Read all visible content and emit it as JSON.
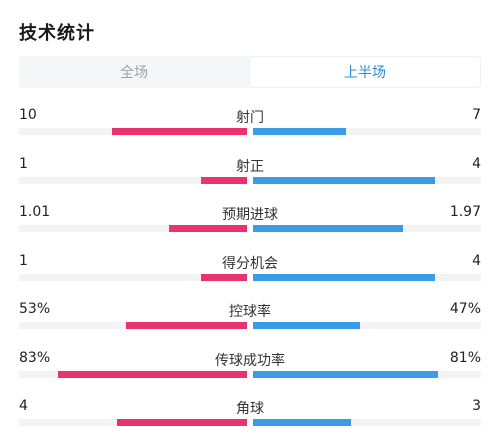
{
  "title": "技术统计",
  "tabs": [
    {
      "label": "全场",
      "active": false
    },
    {
      "label": "上半场",
      "active": true
    }
  ],
  "colors": {
    "home": "#e8336e",
    "away": "#3a9be6",
    "active_tab": "#2a8bd6"
  },
  "stats": [
    {
      "label": "射门",
      "left": "10",
      "right": "7",
      "left_share": 0.59,
      "right_share": 0.41
    },
    {
      "label": "射正",
      "left": "1",
      "right": "4",
      "left_share": 0.2,
      "right_share": 0.8
    },
    {
      "label": "预期进球",
      "left": "1.01",
      "right": "1.97",
      "left_share": 0.34,
      "right_share": 0.66
    },
    {
      "label": "得分机会",
      "left": "1",
      "right": "4",
      "left_share": 0.2,
      "right_share": 0.8
    },
    {
      "label": "控球率",
      "left": "53%",
      "right": "47%",
      "left_share": 0.53,
      "right_share": 0.47
    },
    {
      "label": "传球成功率",
      "left": "83%",
      "right": "81%",
      "left_share": 0.83,
      "right_share": 0.81
    },
    {
      "label": "角球",
      "left": "4",
      "right": "3",
      "left_share": 0.57,
      "right_share": 0.43
    }
  ]
}
